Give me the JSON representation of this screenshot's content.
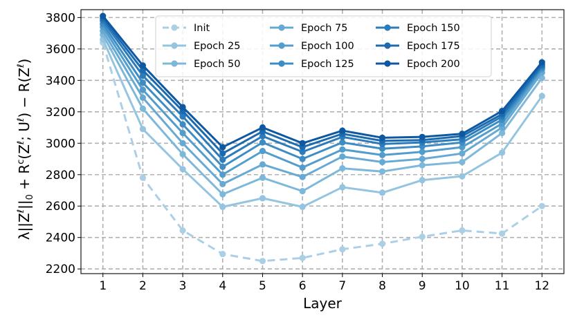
{
  "chart_data": {
    "type": "line",
    "xlabel": "Layer",
    "ylabel": "λ||Z^ℓ||_0 + R^c(Z^ℓ; U^ℓ) − R(Z^ℓ)",
    "ylabel_parts": {
      "a": "λ||Z",
      "b": "ℓ",
      "c": "||",
      "d": "0",
      "e": " + R",
      "f": "c",
      "g": "(Z",
      "h": "ℓ",
      "i": "; U",
      "j": "ℓ",
      "k": ") − R(Z",
      "l": "ℓ",
      "m": ")"
    },
    "x": [
      1,
      2,
      3,
      4,
      5,
      6,
      7,
      8,
      9,
      10,
      11,
      12
    ],
    "x_ticks": [
      "1",
      "2",
      "3",
      "4",
      "5",
      "6",
      "7",
      "8",
      "9",
      "10",
      "11",
      "12"
    ],
    "y_ticks": [
      "2200",
      "2400",
      "2600",
      "2800",
      "3000",
      "3200",
      "3400",
      "3600",
      "3800"
    ],
    "xlim": [
      0.45,
      12.55
    ],
    "ylim": [
      2170,
      3850
    ],
    "grid": true,
    "legend_position": "top-center",
    "series": [
      {
        "name": "Init",
        "color": "#abd0e6",
        "dashed": true,
        "values": [
          3640,
          2780,
          2445,
          2295,
          2250,
          2270,
          2325,
          2360,
          2405,
          2445,
          2425,
          2600
        ]
      },
      {
        "name": "Epoch 25",
        "color": "#94c4df",
        "dashed": false,
        "values": [
          3660,
          3090,
          2835,
          2595,
          2650,
          2595,
          2720,
          2685,
          2765,
          2790,
          2940,
          3300
        ]
      },
      {
        "name": "Epoch 50",
        "color": "#7db8da",
        "dashed": false,
        "values": [
          3690,
          3220,
          2930,
          2675,
          2780,
          2695,
          2840,
          2820,
          2860,
          2880,
          3065,
          3415
        ]
      },
      {
        "name": "Epoch 75",
        "color": "#66aad4",
        "dashed": false,
        "values": [
          3715,
          3290,
          3000,
          2740,
          2865,
          2785,
          2915,
          2880,
          2900,
          2935,
          3100,
          3450
        ]
      },
      {
        "name": "Epoch 100",
        "color": "#529dcc",
        "dashed": false,
        "values": [
          3740,
          3340,
          3065,
          2800,
          2950,
          2845,
          2960,
          2925,
          2945,
          2975,
          3125,
          3470
        ]
      },
      {
        "name": "Epoch 125",
        "color": "#3d8dc4",
        "dashed": false,
        "values": [
          3760,
          3385,
          3120,
          2850,
          3005,
          2900,
          3005,
          2965,
          2980,
          3005,
          3150,
          3480
        ]
      },
      {
        "name": "Epoch 150",
        "color": "#2c7bba",
        "dashed": false,
        "values": [
          3780,
          3430,
          3170,
          2895,
          3045,
          2945,
          3040,
          2995,
          3005,
          3025,
          3170,
          3490
        ]
      },
      {
        "name": "Epoch 175",
        "color": "#1c6aaf",
        "dashed": false,
        "values": [
          3795,
          3465,
          3205,
          2935,
          3075,
          2975,
          3060,
          3015,
          3020,
          3045,
          3185,
          3500
        ]
      },
      {
        "name": "Epoch 200",
        "color": "#0d58a0",
        "dashed": false,
        "values": [
          3810,
          3495,
          3230,
          2975,
          3100,
          3000,
          3080,
          3035,
          3040,
          3060,
          3205,
          3515
        ]
      }
    ]
  }
}
